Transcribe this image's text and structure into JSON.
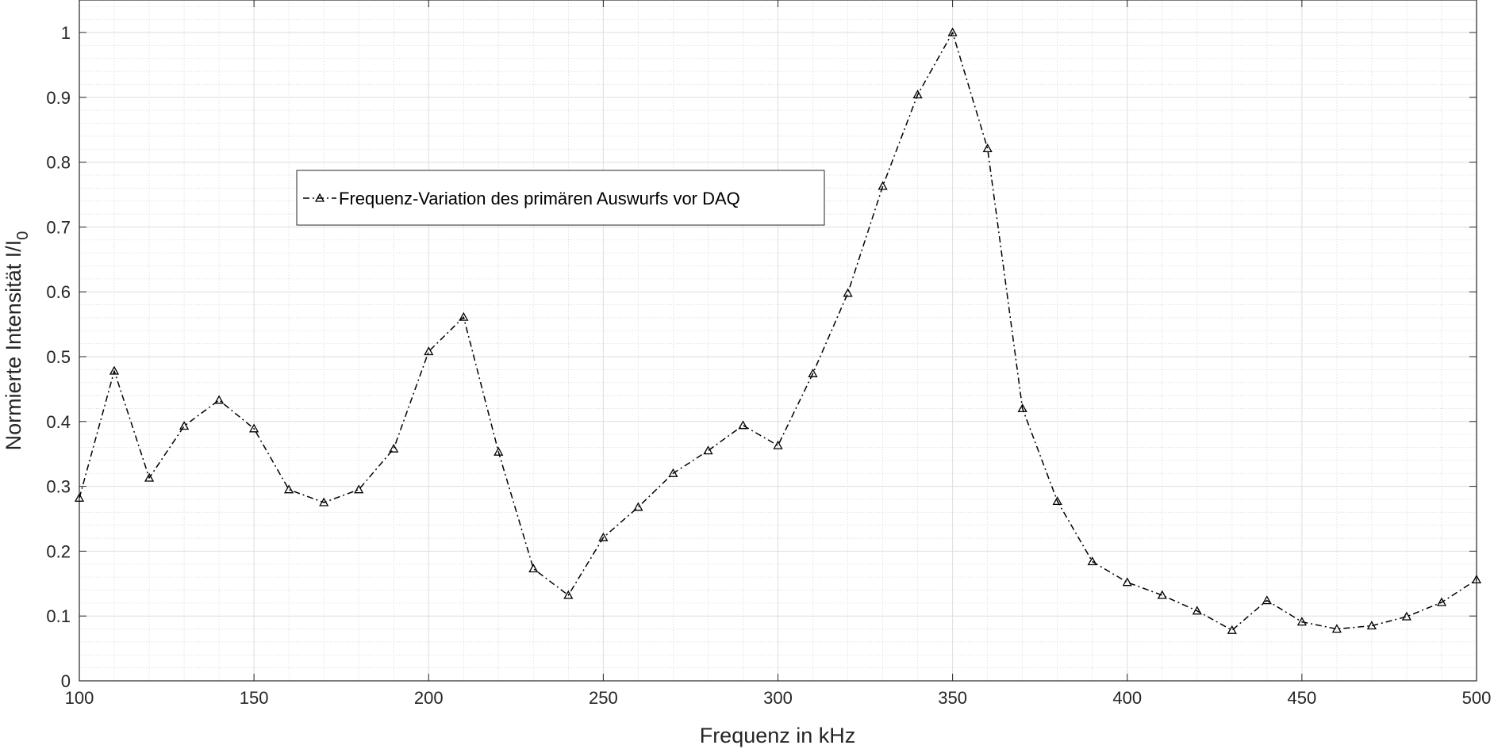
{
  "chart_data": {
    "type": "line",
    "title": "",
    "xlabel": "Frequenz in kHz",
    "ylabel": {
      "main": "Normierte Intensität I/I",
      "subscript": "0"
    },
    "xlim": [
      100,
      500
    ],
    "ylim": [
      0,
      1.05
    ],
    "xticks": [
      100,
      150,
      200,
      250,
      300,
      350,
      400,
      450,
      500
    ],
    "yticks": [
      0,
      0.1,
      0.2,
      0.3,
      0.4,
      0.5,
      0.6,
      0.7,
      0.8,
      0.9,
      1
    ],
    "ytick_labels": [
      "0",
      "0.1",
      "0.2",
      "0.3",
      "0.4",
      "0.5",
      "0.6",
      "0.7",
      "0.8",
      "0.9",
      "1"
    ],
    "grid": true,
    "minor_grid": true,
    "legend_position": "upper-left",
    "series": [
      {
        "name": "Frequenz-Variation des primären Auswurfs vor DAQ",
        "marker": "triangle",
        "line_style": "dash-dot",
        "color": "#000000",
        "x": [
          100,
          110,
          120,
          130,
          140,
          150,
          160,
          170,
          180,
          190,
          200,
          210,
          220,
          230,
          240,
          250,
          260,
          270,
          280,
          290,
          300,
          310,
          320,
          330,
          340,
          350,
          360,
          370,
          380,
          390,
          400,
          410,
          420,
          430,
          440,
          450,
          460,
          470,
          480,
          490,
          500
        ],
        "y": [
          0.282,
          0.478,
          0.313,
          0.393,
          0.433,
          0.389,
          0.295,
          0.275,
          0.295,
          0.358,
          0.508,
          0.561,
          0.353,
          0.173,
          0.132,
          0.221,
          0.268,
          0.32,
          0.355,
          0.394,
          0.363,
          0.474,
          0.598,
          0.763,
          0.904,
          1.0,
          0.821,
          0.42,
          0.277,
          0.184,
          0.152,
          0.132,
          0.108,
          0.078,
          0.124,
          0.091,
          0.08,
          0.085,
          0.099,
          0.121,
          0.156
        ]
      }
    ]
  }
}
